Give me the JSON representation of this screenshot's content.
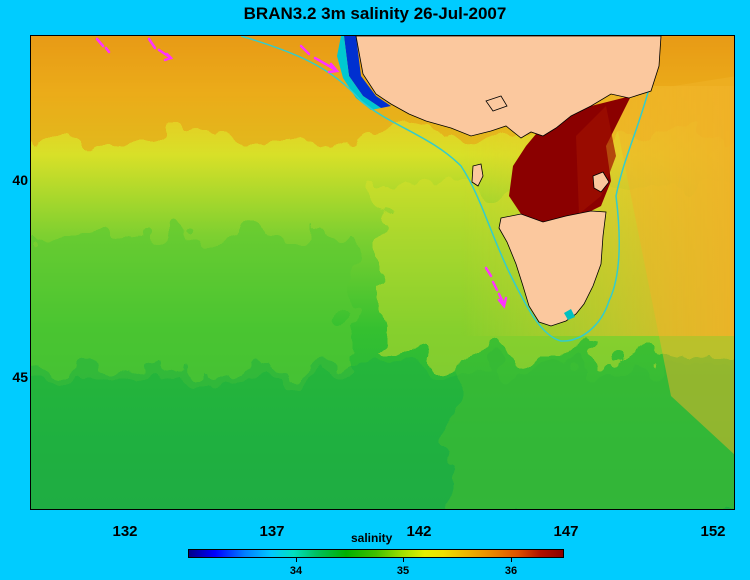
{
  "title": "BRAN3.2 3m salinity 26-Jul-2007",
  "map": {
    "y_ticks": [
      "40",
      "45"
    ],
    "x_ticks": [
      "132",
      "137",
      "142",
      "147",
      "152"
    ],
    "land_color": "#fbc89e",
    "current_arrow_color": "#ff33ff",
    "contour_color": "#33cccc"
  },
  "colorbar": {
    "title": "salinity",
    "ticks": [
      "34",
      "35",
      "36"
    ],
    "colors": [
      "#00008b",
      "#0000ff",
      "#00c8ff",
      "#00b000",
      "#a0e000",
      "#f0e000",
      "#e88000",
      "#8b0000"
    ]
  }
}
